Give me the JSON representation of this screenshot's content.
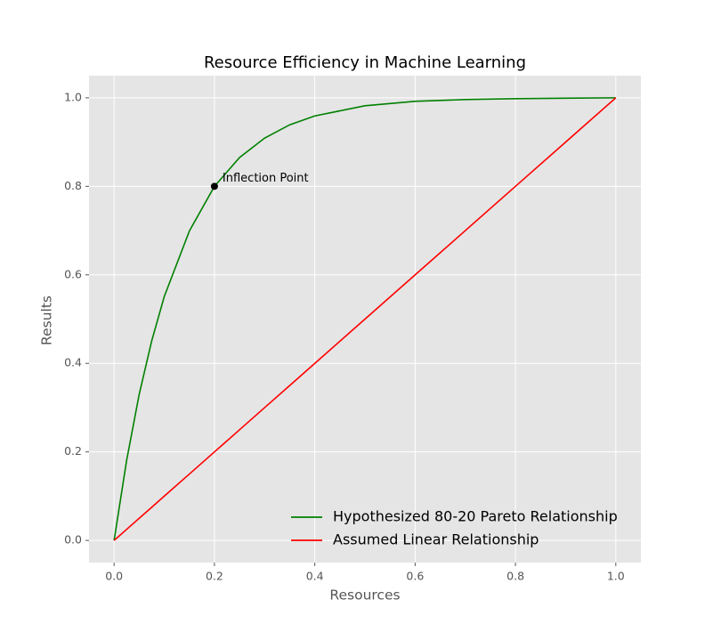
{
  "chart_data": {
    "type": "line",
    "title": "Resource Efficiency in Machine Learning",
    "x_label": "Resources",
    "y_label": "Results",
    "x": [
      0,
      0.025,
      0.05,
      0.075,
      0.1,
      0.15,
      0.2,
      0.25,
      0.3,
      0.35,
      0.4,
      0.5,
      0.6,
      0.7,
      0.8,
      0.9,
      1.0
    ],
    "series": [
      {
        "name": "Hypothesized 80-20 Pareto Relationship",
        "color": "#008000",
        "values": [
          0,
          0.181,
          0.33,
          0.451,
          0.551,
          0.699,
          0.8,
          0.865,
          0.909,
          0.939,
          0.959,
          0.982,
          0.992,
          0.996,
          0.998,
          0.999,
          1.0
        ]
      },
      {
        "name": "Assumed Linear Relationship",
        "color": "#ff0000",
        "values": [
          0,
          0.025,
          0.05,
          0.075,
          0.1,
          0.15,
          0.2,
          0.25,
          0.3,
          0.35,
          0.4,
          0.5,
          0.6,
          0.7,
          0.8,
          0.9,
          1.0
        ]
      }
    ],
    "annotations": [
      {
        "text": "Inflection Point",
        "x": 0.2,
        "y": 0.8,
        "color": "#000000"
      }
    ],
    "xlim": [
      -0.05,
      1.05
    ],
    "ylim": [
      -0.05,
      1.05
    ],
    "xticks": [
      {
        "value": 0,
        "label": "0.0"
      },
      0.2,
      0.4,
      0.6,
      0.8,
      {
        "value": 1,
        "label": "1.0"
      }
    ],
    "yticks": [
      {
        "value": 0,
        "label": "0.0"
      },
      0.2,
      0.4,
      0.6,
      0.8,
      {
        "value": 1,
        "label": "1.0"
      }
    ],
    "grid": true,
    "legend": "lower right"
  }
}
